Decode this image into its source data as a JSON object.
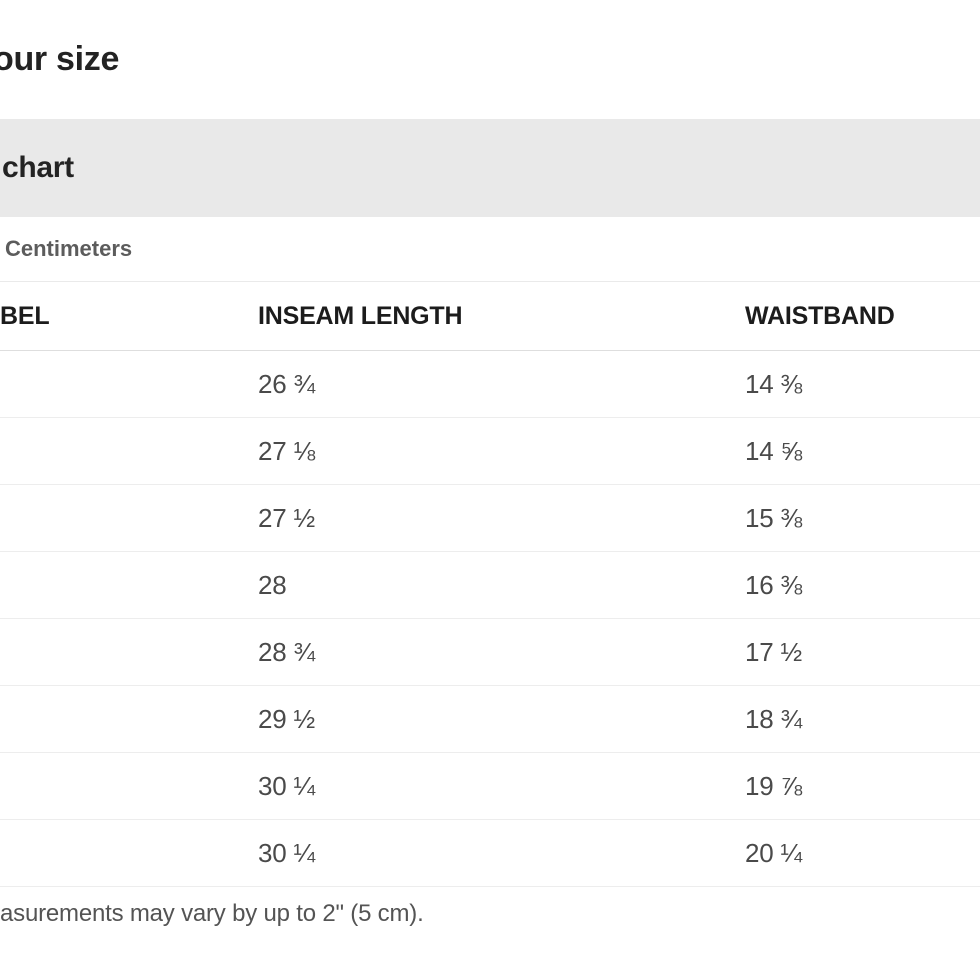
{
  "page": {
    "title_fragment": "our size",
    "section_header_fragment": "chart",
    "units_option": "Centimeters",
    "footnote_fragment": "asurements may vary by up to 2\" (5 cm)."
  },
  "table": {
    "headers": [
      "BEL",
      "INSEAM LENGTH",
      "WAISTBAND"
    ],
    "rows": [
      {
        "label": "",
        "inseam": "26 ¾",
        "waistband": "14 ⅜"
      },
      {
        "label": "",
        "inseam": "27 ⅛",
        "waistband": "14 ⅝"
      },
      {
        "label": "",
        "inseam": "27 ½",
        "waistband": "15 ⅜"
      },
      {
        "label": "",
        "inseam": "28",
        "waistband": "16 ⅜"
      },
      {
        "label": "",
        "inseam": "28 ¾",
        "waistband": "17 ½"
      },
      {
        "label": "",
        "inseam": "29 ½",
        "waistband": "18 ¾"
      },
      {
        "label": "",
        "inseam": "30 ¼",
        "waistband": "19 ⅞"
      },
      {
        "label": "",
        "inseam": "30 ¼",
        "waistband": "20 ¼"
      }
    ]
  },
  "colors": {
    "band_background": "#e9e9e9",
    "heading_text": "#232323",
    "header_text": "#1c1c1c",
    "value_text": "#4a4a4a",
    "muted_text": "#5c5c5c",
    "row_divider": "#ededed",
    "header_divider": "#dedede"
  }
}
